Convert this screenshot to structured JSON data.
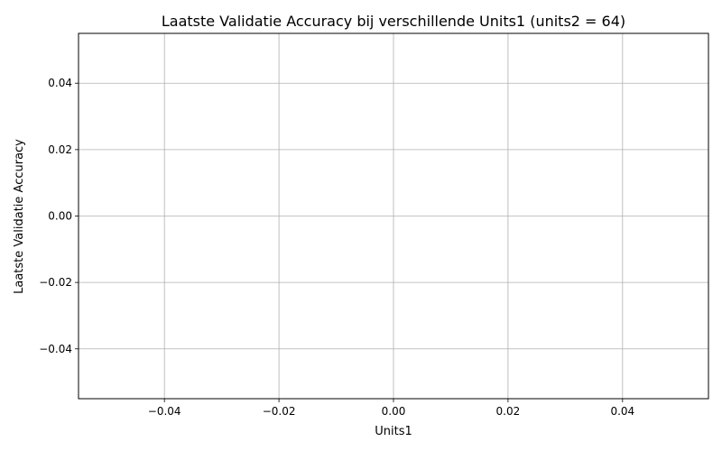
{
  "chart_data": {
    "type": "line",
    "title": "Laatste Validatie Accuracy bij verschillende Units1 (units2 = 64)",
    "xlabel": "Units1",
    "ylabel": "Laatste Validatie Accuracy",
    "xlim": [
      -0.055,
      0.055
    ],
    "ylim": [
      -0.055,
      0.055
    ],
    "xticks": [
      -0.04,
      -0.02,
      0.0,
      0.02,
      0.04
    ],
    "xtick_labels": [
      "−0.04",
      "−0.02",
      "0.00",
      "0.02",
      "0.04"
    ],
    "yticks": [
      -0.04,
      -0.02,
      0.0,
      0.02,
      0.04
    ],
    "ytick_labels": [
      "−0.04",
      "−0.02",
      "0.00",
      "0.02",
      "0.04"
    ],
    "grid": true,
    "series": [
      {
        "x": [],
        "y": []
      }
    ]
  }
}
